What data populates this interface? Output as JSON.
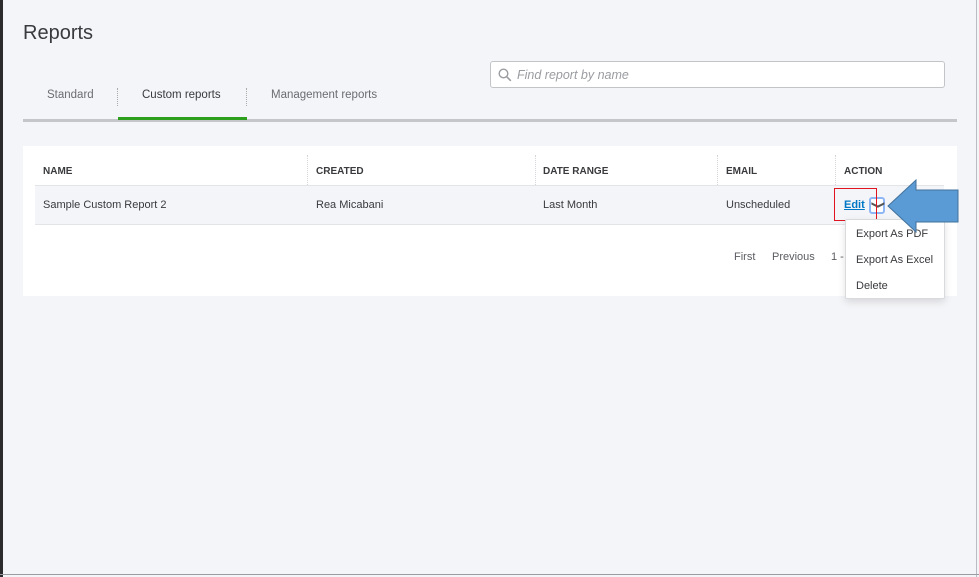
{
  "page": {
    "title": "Reports"
  },
  "tabs": [
    {
      "label": "Standard"
    },
    {
      "label": "Custom reports",
      "active": true
    },
    {
      "label": "Management reports"
    }
  ],
  "search": {
    "placeholder": "Find report by name",
    "value": ""
  },
  "table": {
    "columns": [
      "NAME",
      "CREATED",
      "DATE RANGE",
      "EMAIL",
      "ACTION"
    ],
    "rows": [
      {
        "name": "Sample Custom Report 2",
        "created": "Rea Micabani",
        "date_range": "Last Month",
        "email": "Unscheduled",
        "action": "Edit"
      }
    ]
  },
  "pagination": {
    "first": "First",
    "previous": "Previous",
    "range": "1 -"
  },
  "action_menu": {
    "items": [
      "Export As PDF",
      "Export As Excel",
      "Delete"
    ]
  },
  "colors": {
    "accent_green": "#2ca01c",
    "link_blue": "#0077c5",
    "annotation_arrow": "#5b9bd5",
    "annotation_box": "#e0141e"
  },
  "icons": {
    "search": "search-icon",
    "chevron": "chevron-down-icon",
    "annotation": "arrow-left-icon"
  }
}
